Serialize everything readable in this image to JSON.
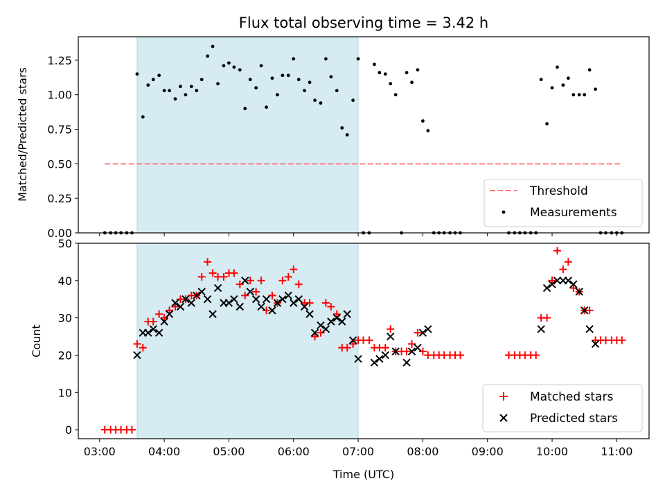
{
  "colors": {
    "threshold": "#ff8080",
    "measurement": "#000000",
    "matched": "#ff0000",
    "predicted": "#000000",
    "span": "#add8e6"
  },
  "chart_data": [
    {
      "type": "scatter",
      "title": "Flux total observing time = 3.42 h",
      "ylabel": "Matched/Predicted stars",
      "xlabel": "",
      "xlim": [
        2.67,
        11.5
      ],
      "ylim": [
        0,
        1.42
      ],
      "yticks": [
        0,
        0.25,
        0.5,
        0.75,
        1.0,
        1.25
      ],
      "ytick_labels": [
        "0.00",
        "0.25",
        "0.50",
        "0.75",
        "1.00",
        "1.25"
      ],
      "shaded_span": [
        3.58,
        7.0
      ],
      "threshold": {
        "name": "Threshold",
        "y": 0.5,
        "x": [
          3.08,
          11.08
        ],
        "style": "dashed"
      },
      "legend": {
        "position": "bottom-right",
        "entries": [
          "Threshold",
          "Measurements"
        ]
      },
      "series": [
        {
          "name": "Measurements",
          "marker": "dot",
          "points": [
            [
              3.08,
              0
            ],
            [
              3.17,
              0
            ],
            [
              3.25,
              0
            ],
            [
              3.33,
              0
            ],
            [
              3.42,
              0
            ],
            [
              3.5,
              0
            ],
            [
              3.58,
              1.15
            ],
            [
              3.67,
              0.84
            ],
            [
              3.75,
              1.07
            ],
            [
              3.83,
              1.11
            ],
            [
              3.92,
              1.14
            ],
            [
              4.0,
              1.03
            ],
            [
              4.08,
              1.03
            ],
            [
              4.17,
              0.97
            ],
            [
              4.25,
              1.06
            ],
            [
              4.33,
              1.0
            ],
            [
              4.42,
              1.06
            ],
            [
              4.5,
              1.03
            ],
            [
              4.58,
              1.11
            ],
            [
              4.67,
              1.28
            ],
            [
              4.75,
              1.35
            ],
            [
              4.83,
              1.08
            ],
            [
              4.92,
              1.21
            ],
            [
              5.0,
              1.23
            ],
            [
              5.08,
              1.2
            ],
            [
              5.17,
              1.18
            ],
            [
              5.25,
              0.9
            ],
            [
              5.33,
              1.11
            ],
            [
              5.42,
              1.05
            ],
            [
              5.5,
              1.21
            ],
            [
              5.58,
              0.91
            ],
            [
              5.67,
              1.12
            ],
            [
              5.75,
              1.0
            ],
            [
              5.83,
              1.14
            ],
            [
              5.92,
              1.14
            ],
            [
              6.0,
              1.26
            ],
            [
              6.08,
              1.11
            ],
            [
              6.17,
              1.03
            ],
            [
              6.25,
              1.09
            ],
            [
              6.33,
              0.96
            ],
            [
              6.42,
              0.94
            ],
            [
              6.5,
              1.26
            ],
            [
              6.58,
              1.13
            ],
            [
              6.67,
              1.03
            ],
            [
              6.75,
              0.76
            ],
            [
              6.83,
              0.71
            ],
            [
              6.92,
              0.96
            ],
            [
              7.0,
              1.26
            ],
            [
              7.08,
              0
            ],
            [
              7.17,
              0
            ],
            [
              7.25,
              1.22
            ],
            [
              7.33,
              1.16
            ],
            [
              7.42,
              1.15
            ],
            [
              7.5,
              1.08
            ],
            [
              7.58,
              1.0
            ],
            [
              7.67,
              0
            ],
            [
              7.75,
              1.16
            ],
            [
              7.83,
              1.09
            ],
            [
              7.92,
              1.18
            ],
            [
              8.0,
              0.81
            ],
            [
              8.08,
              0.74
            ],
            [
              8.17,
              0
            ],
            [
              8.25,
              0
            ],
            [
              8.33,
              0
            ],
            [
              8.42,
              0
            ],
            [
              8.5,
              0
            ],
            [
              8.58,
              0
            ],
            [
              9.33,
              0
            ],
            [
              9.42,
              0
            ],
            [
              9.5,
              0
            ],
            [
              9.58,
              0
            ],
            [
              9.67,
              0
            ],
            [
              9.75,
              0
            ],
            [
              9.83,
              1.11
            ],
            [
              9.92,
              0.79
            ],
            [
              10.0,
              1.05
            ],
            [
              10.08,
              1.2
            ],
            [
              10.17,
              1.07
            ],
            [
              10.25,
              1.12
            ],
            [
              10.33,
              1.0
            ],
            [
              10.42,
              1.0
            ],
            [
              10.5,
              1.0
            ],
            [
              10.58,
              1.18
            ],
            [
              10.67,
              1.04
            ],
            [
              10.75,
              0
            ],
            [
              10.83,
              0
            ],
            [
              10.92,
              0
            ],
            [
              11.0,
              0
            ],
            [
              11.08,
              0
            ]
          ]
        }
      ]
    },
    {
      "type": "scatter",
      "title": "",
      "ylabel": "Count",
      "xlabel": "Time (UTC)",
      "xlim": [
        2.67,
        11.5
      ],
      "ylim": [
        -2.4,
        50
      ],
      "yticks": [
        0,
        10,
        20,
        30,
        40,
        50
      ],
      "ytick_labels": [
        "0",
        "10",
        "20",
        "30",
        "40",
        "50"
      ],
      "xticks": [
        3,
        4,
        5,
        6,
        7,
        8,
        9,
        10,
        11
      ],
      "xtick_labels": [
        "03:00",
        "04:00",
        "05:00",
        "06:00",
        "07:00",
        "08:00",
        "09:00",
        "10:00",
        "11:00"
      ],
      "shaded_span": [
        3.58,
        7.0
      ],
      "legend": {
        "position": "bottom-right",
        "entries": [
          "Matched stars",
          "Predicted stars"
        ]
      },
      "series": [
        {
          "name": "Matched stars",
          "marker": "plus",
          "points": [
            [
              3.08,
              0
            ],
            [
              3.17,
              0
            ],
            [
              3.25,
              0
            ],
            [
              3.33,
              0
            ],
            [
              3.42,
              0
            ],
            [
              3.5,
              0
            ],
            [
              3.58,
              23
            ],
            [
              3.67,
              22
            ],
            [
              3.75,
              29
            ],
            [
              3.83,
              29
            ],
            [
              3.92,
              31
            ],
            [
              4.0,
              30
            ],
            [
              4.08,
              32
            ],
            [
              4.17,
              33
            ],
            [
              4.25,
              35
            ],
            [
              4.33,
              35
            ],
            [
              4.42,
              36
            ],
            [
              4.5,
              36
            ],
            [
              4.58,
              41
            ],
            [
              4.67,
              45
            ],
            [
              4.75,
              42
            ],
            [
              4.83,
              41
            ],
            [
              4.92,
              41
            ],
            [
              5.0,
              42
            ],
            [
              5.08,
              42
            ],
            [
              5.17,
              39
            ],
            [
              5.25,
              36
            ],
            [
              5.33,
              40
            ],
            [
              5.42,
              37
            ],
            [
              5.5,
              40
            ],
            [
              5.58,
              32
            ],
            [
              5.67,
              36
            ],
            [
              5.75,
              34
            ],
            [
              5.83,
              40
            ],
            [
              5.92,
              41
            ],
            [
              6.0,
              43
            ],
            [
              6.08,
              39
            ],
            [
              6.17,
              34
            ],
            [
              6.25,
              34
            ],
            [
              6.33,
              25
            ],
            [
              6.42,
              26
            ],
            [
              6.5,
              34
            ],
            [
              6.58,
              33
            ],
            [
              6.67,
              31
            ],
            [
              6.75,
              22
            ],
            [
              6.83,
              22
            ],
            [
              6.92,
              23
            ],
            [
              7.0,
              24
            ],
            [
              7.08,
              24
            ],
            [
              7.17,
              24
            ],
            [
              7.25,
              22
            ],
            [
              7.33,
              22
            ],
            [
              7.42,
              22
            ],
            [
              7.5,
              27
            ],
            [
              7.58,
              21
            ],
            [
              7.67,
              21
            ],
            [
              7.75,
              21
            ],
            [
              7.83,
              23
            ],
            [
              7.92,
              26
            ],
            [
              8.0,
              21
            ],
            [
              8.08,
              20
            ],
            [
              8.17,
              20
            ],
            [
              8.25,
              20
            ],
            [
              8.33,
              20
            ],
            [
              8.42,
              20
            ],
            [
              8.5,
              20
            ],
            [
              8.58,
              20
            ],
            [
              9.33,
              20
            ],
            [
              9.42,
              20
            ],
            [
              9.5,
              20
            ],
            [
              9.58,
              20
            ],
            [
              9.67,
              20
            ],
            [
              9.75,
              20
            ],
            [
              9.83,
              30
            ],
            [
              9.92,
              30
            ],
            [
              10.0,
              40
            ],
            [
              10.08,
              48
            ],
            [
              10.17,
              43
            ],
            [
              10.25,
              45
            ],
            [
              10.33,
              38
            ],
            [
              10.42,
              37
            ],
            [
              10.5,
              32
            ],
            [
              10.58,
              32
            ],
            [
              10.67,
              24
            ],
            [
              10.75,
              24
            ],
            [
              10.83,
              24
            ],
            [
              10.92,
              24
            ],
            [
              11.0,
              24
            ],
            [
              11.08,
              24
            ]
          ]
        },
        {
          "name": "Predicted stars",
          "marker": "x",
          "points": [
            [
              3.58,
              20
            ],
            [
              3.67,
              26
            ],
            [
              3.75,
              26
            ],
            [
              3.83,
              27
            ],
            [
              3.92,
              26
            ],
            [
              4.0,
              29
            ],
            [
              4.08,
              31
            ],
            [
              4.17,
              34
            ],
            [
              4.25,
              33
            ],
            [
              4.33,
              35
            ],
            [
              4.42,
              34
            ],
            [
              4.5,
              36
            ],
            [
              4.58,
              37
            ],
            [
              4.67,
              35
            ],
            [
              4.75,
              31
            ],
            [
              4.83,
              38
            ],
            [
              4.92,
              34
            ],
            [
              5.0,
              34
            ],
            [
              5.08,
              35
            ],
            [
              5.17,
              33
            ],
            [
              5.25,
              40
            ],
            [
              5.33,
              37
            ],
            [
              5.42,
              35
            ],
            [
              5.5,
              33
            ],
            [
              5.58,
              35
            ],
            [
              5.67,
              32
            ],
            [
              5.75,
              34
            ],
            [
              5.83,
              35
            ],
            [
              5.92,
              36
            ],
            [
              6.0,
              34
            ],
            [
              6.08,
              35
            ],
            [
              6.17,
              33
            ],
            [
              6.25,
              31
            ],
            [
              6.33,
              26
            ],
            [
              6.42,
              28
            ],
            [
              6.5,
              27
            ],
            [
              6.58,
              29
            ],
            [
              6.67,
              30
            ],
            [
              6.75,
              29
            ],
            [
              6.83,
              31
            ],
            [
              6.92,
              24
            ],
            [
              7.0,
              19
            ],
            [
              7.25,
              18
            ],
            [
              7.33,
              19
            ],
            [
              7.42,
              20
            ],
            [
              7.5,
              25
            ],
            [
              7.58,
              21
            ],
            [
              7.75,
              18
            ],
            [
              7.83,
              21
            ],
            [
              7.92,
              22
            ],
            [
              8.0,
              26
            ],
            [
              8.08,
              27
            ],
            [
              9.83,
              27
            ],
            [
              9.92,
              38
            ],
            [
              10.0,
              39
            ],
            [
              10.08,
              40
            ],
            [
              10.17,
              40
            ],
            [
              10.25,
              40
            ],
            [
              10.33,
              39
            ],
            [
              10.42,
              37
            ],
            [
              10.5,
              32
            ],
            [
              10.58,
              27
            ],
            [
              10.67,
              23
            ]
          ]
        }
      ]
    }
  ]
}
